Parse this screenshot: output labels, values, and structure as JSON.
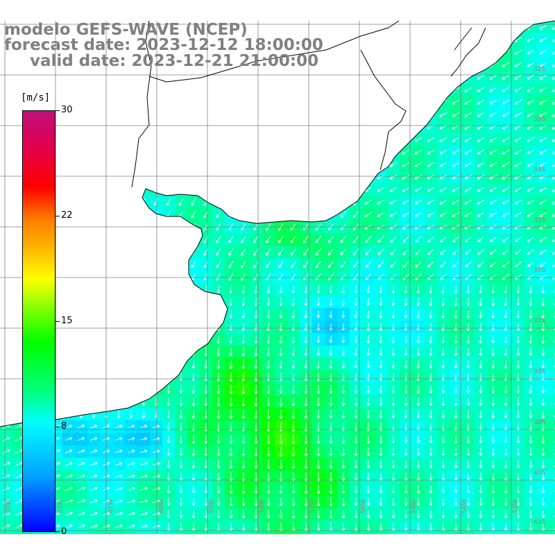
{
  "title": {
    "model": "modelo GEFS-WAVE (NCEP)",
    "forecast": "forecast date: 2023-12-12 18:00:00",
    "valid": "valid date: 2023-12-21 21:00:00"
  },
  "colorbar": {
    "unit": "[m/s]",
    "ticks": [
      "30",
      "22",
      "15",
      "8",
      "0"
    ]
  },
  "grid": {
    "lat_labels": [
      "32S",
      "33S",
      "34S",
      "35S",
      "36S",
      "37S",
      "38S",
      "39S",
      "40S",
      "41S"
    ],
    "lon_labels": [
      "63W",
      "62W",
      "61W",
      "60W",
      "59W",
      "58W",
      "57W",
      "56W",
      "55W",
      "54W",
      "53W",
      "52W"
    ]
  },
  "colors": {
    "land": "#ffffff",
    "grid_line": "#7f7f7f",
    "coast": "#000000",
    "arrow": "#ffffff"
  },
  "field": {
    "variable": "wind speed and direction",
    "units": "m/s",
    "range": [
      0,
      30
    ]
  }
}
